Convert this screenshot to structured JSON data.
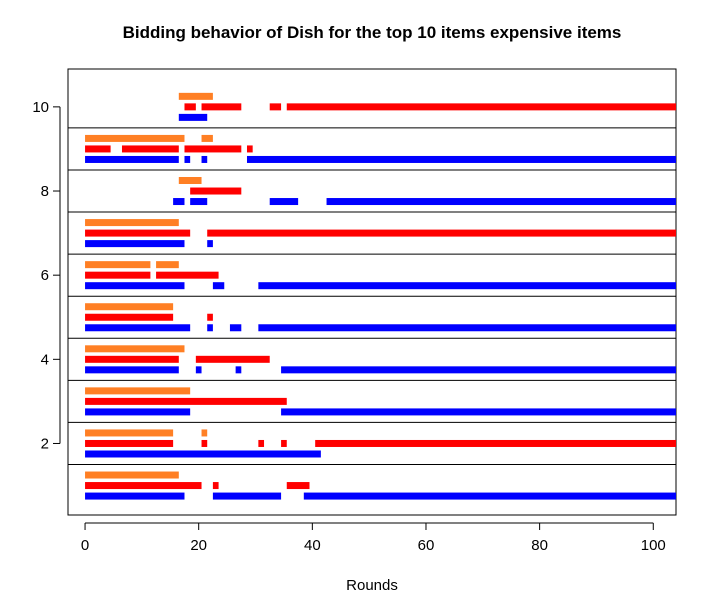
{
  "chart_data": {
    "type": "bar",
    "title": "Bidding behavior of Dish for the top 10 items expensive items",
    "xlabel": "Rounds",
    "ylabel": "",
    "xlim": [
      -3,
      104
    ],
    "ylim": [
      0.3,
      10.9
    ],
    "x_ticks": [
      0,
      20,
      40,
      60,
      80,
      100
    ],
    "y_ticks": [
      2,
      4,
      6,
      8,
      10
    ],
    "colors": {
      "orange": "#ff7f24",
      "red": "#ff0000",
      "blue": "#0000ff"
    },
    "grid": false,
    "legend": "none",
    "separators": [
      1.5,
      2.5,
      3.5,
      4.5,
      5.5,
      6.5,
      7.5,
      8.5,
      9.5
    ],
    "series": [
      {
        "color": "#ff7f24",
        "row_offset": 0.25,
        "segments": {
          "1": [
            [
              0,
              16.5
            ]
          ],
          "2": [
            [
              0,
              15.5
            ],
            [
              20.5,
              21.5
            ]
          ],
          "3": [
            [
              0,
              18.5
            ]
          ],
          "4": [
            [
              0,
              17.5
            ]
          ],
          "5": [
            [
              0,
              15.5
            ]
          ],
          "6": [
            [
              0,
              11.5
            ],
            [
              12.5,
              16.5
            ]
          ],
          "7": [
            [
              0,
              16.5
            ]
          ],
          "8": [
            [
              16.5,
              20.5
            ]
          ],
          "9": [
            [
              0,
              17.5
            ],
            [
              20.5,
              22.5
            ]
          ],
          "10": [
            [
              16.5,
              22.5
            ]
          ]
        }
      },
      {
        "color": "#ff0000",
        "row_offset": 0,
        "segments": {
          "1": [
            [
              0,
              20.5
            ],
            [
              22.5,
              23.5
            ],
            [
              35.5,
              39.5
            ]
          ],
          "2": [
            [
              0,
              15.5
            ],
            [
              20.5,
              21.5
            ],
            [
              30.5,
              31.5
            ],
            [
              34.5,
              35.5
            ],
            [
              40.5,
              104
            ]
          ],
          "3": [
            [
              0,
              35.5
            ]
          ],
          "4": [
            [
              0,
              16.5
            ],
            [
              19.5,
              32.5
            ]
          ],
          "5": [
            [
              0,
              15.5
            ],
            [
              21.5,
              22.5
            ]
          ],
          "6": [
            [
              0,
              11.5
            ],
            [
              12.5,
              23.5
            ]
          ],
          "7": [
            [
              0,
              18.5
            ],
            [
              21.5,
              104
            ]
          ],
          "8": [
            [
              18.5,
              27.5
            ]
          ],
          "9": [
            [
              0,
              4.5
            ],
            [
              6.5,
              16.5
            ],
            [
              17.5,
              27.5
            ],
            [
              28.5,
              29.5
            ]
          ],
          "10": [
            [
              17.5,
              19.5
            ],
            [
              20.5,
              27.5
            ],
            [
              32.5,
              34.5
            ],
            [
              35.5,
              104
            ]
          ]
        }
      },
      {
        "color": "#0000ff",
        "row_offset": -0.25,
        "segments": {
          "1": [
            [
              0,
              17.5
            ],
            [
              22.5,
              34.5
            ],
            [
              38.5,
              104
            ]
          ],
          "2": [
            [
              0,
              41.5
            ]
          ],
          "3": [
            [
              0,
              18.5
            ],
            [
              34.5,
              104
            ]
          ],
          "4": [
            [
              0,
              16.5
            ],
            [
              19.5,
              20.5
            ],
            [
              26.5,
              27.5
            ],
            [
              34.5,
              104
            ]
          ],
          "5": [
            [
              0,
              18.5
            ],
            [
              21.5,
              22.5
            ],
            [
              25.5,
              27.5
            ],
            [
              30.5,
              104
            ]
          ],
          "6": [
            [
              0,
              17.5
            ],
            [
              22.5,
              24.5
            ],
            [
              30.5,
              104
            ]
          ],
          "7": [
            [
              0,
              17.5
            ],
            [
              21.5,
              22.5
            ]
          ],
          "8": [
            [
              15.5,
              17.5
            ],
            [
              18.5,
              21.5
            ],
            [
              32.5,
              37.5
            ],
            [
              42.5,
              104
            ]
          ],
          "9": [
            [
              0,
              16.5
            ],
            [
              17.5,
              18.5
            ],
            [
              20.5,
              21.5
            ],
            [
              28.5,
              104
            ]
          ],
          "10": [
            [
              16.5,
              21.5
            ]
          ]
        }
      }
    ]
  }
}
